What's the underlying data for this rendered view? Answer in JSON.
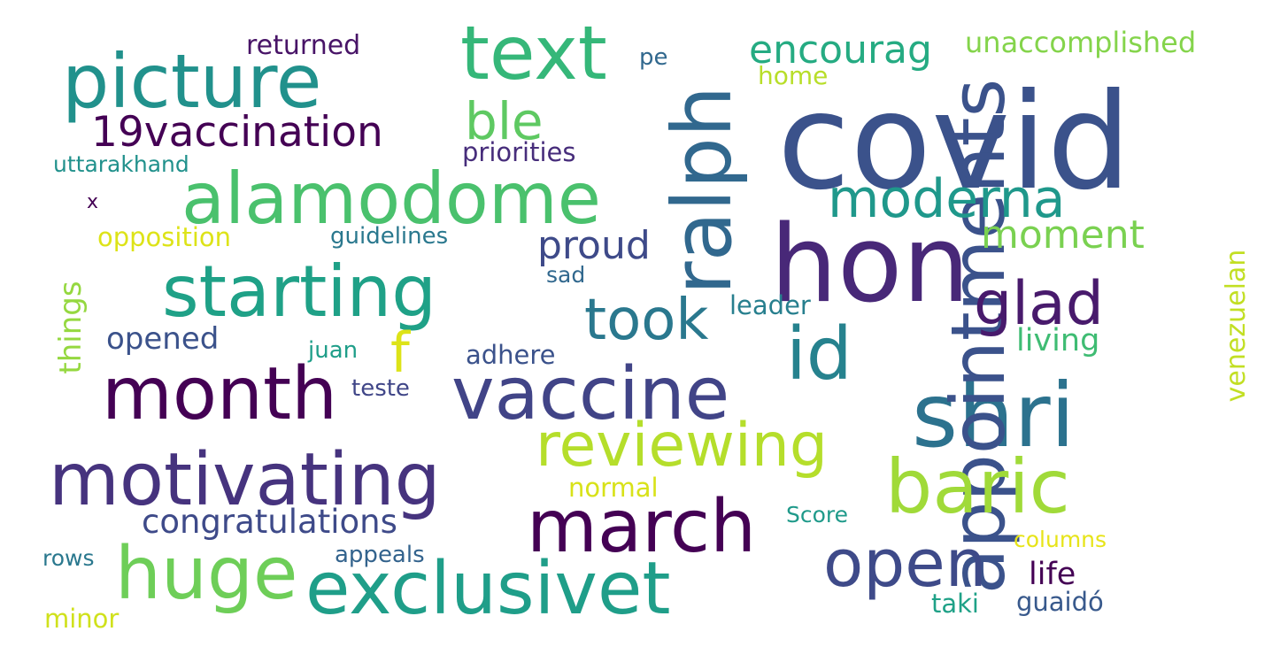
{
  "wordcloud": {
    "words": [
      {
        "text": "covid",
        "color": "#3b528b"
      },
      {
        "text": "hon",
        "color": "#482878"
      },
      {
        "text": "shri",
        "color": "#2c728e"
      },
      {
        "text": "appointments",
        "color": "#3b528b"
      },
      {
        "text": "ralph",
        "color": "#31688e"
      },
      {
        "text": "id",
        "color": "#26828e"
      },
      {
        "text": "baric",
        "color": "#a0da39"
      },
      {
        "text": "text",
        "color": "#35b779"
      },
      {
        "text": "picture",
        "color": "#21918c"
      },
      {
        "text": "alamodome",
        "color": "#4ac16d"
      },
      {
        "text": "starting",
        "color": "#1fa187"
      },
      {
        "text": "month",
        "color": "#440154"
      },
      {
        "text": "vaccine",
        "color": "#414487"
      },
      {
        "text": "motivating",
        "color": "#46337e"
      },
      {
        "text": "march",
        "color": "#440154"
      },
      {
        "text": "exclusivet",
        "color": "#1f9e89"
      },
      {
        "text": "huge",
        "color": "#6ece58"
      },
      {
        "text": "open",
        "color": "#3e4a89"
      },
      {
        "text": "reviewing",
        "color": "#b5de2b"
      },
      {
        "text": "took",
        "color": "#2a788e"
      },
      {
        "text": "glad",
        "color": "#481a6c"
      },
      {
        "text": "moderna",
        "color": "#1f988b"
      },
      {
        "text": "ble",
        "color": "#5ec962"
      },
      {
        "text": "19vaccination",
        "color": "#440154"
      },
      {
        "text": "encourag",
        "color": "#25ab82"
      },
      {
        "text": "proud",
        "color": "#3e4a89"
      },
      {
        "text": "moment",
        "color": "#7ad151"
      },
      {
        "text": "f",
        "color": "#dde318"
      },
      {
        "text": "congratulations",
        "color": "#3e4a89"
      },
      {
        "text": "opened",
        "color": "#3b528b"
      },
      {
        "text": "living",
        "color": "#3fbc73"
      },
      {
        "text": "life",
        "color": "#440154"
      },
      {
        "text": "venezuelan",
        "color": "#c2df23"
      },
      {
        "text": "unaccomplished",
        "color": "#84d44b"
      },
      {
        "text": "returned",
        "color": "#481467"
      },
      {
        "text": "home",
        "color": "#b8de29"
      },
      {
        "text": "pe",
        "color": "#31688e"
      },
      {
        "text": "priorities",
        "color": "#472d7b"
      },
      {
        "text": "uttarakhand",
        "color": "#21918c"
      },
      {
        "text": "x",
        "color": "#440154"
      },
      {
        "text": "opposition",
        "color": "#dde318"
      },
      {
        "text": "guidelines",
        "color": "#2a788e"
      },
      {
        "text": "sad",
        "color": "#31688e"
      },
      {
        "text": "leader",
        "color": "#277f8e"
      },
      {
        "text": "things",
        "color": "#95d840"
      },
      {
        "text": "juan",
        "color": "#1f9e89"
      },
      {
        "text": "adhere",
        "color": "#3b528b"
      },
      {
        "text": "teste",
        "color": "#404688"
      },
      {
        "text": "normal",
        "color": "#d8e219"
      },
      {
        "text": "Score",
        "color": "#1f9a8a"
      },
      {
        "text": "columns",
        "color": "#e7e419"
      },
      {
        "text": "rows",
        "color": "#2a788e"
      },
      {
        "text": "appeals",
        "color": "#33638d"
      },
      {
        "text": "taki",
        "color": "#1fa187"
      },
      {
        "text": "guaidó",
        "color": "#38598c"
      },
      {
        "text": "minor",
        "color": "#d0e11c"
      }
    ]
  }
}
